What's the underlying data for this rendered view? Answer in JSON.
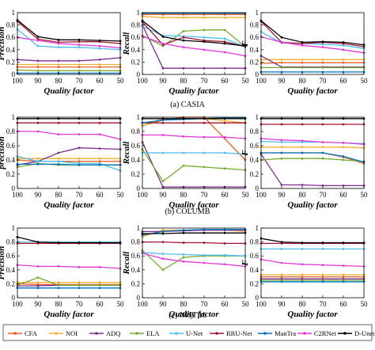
{
  "x_values": [
    100,
    90,
    80,
    70,
    60,
    50
  ],
  "x_ticks": [
    "100",
    "90",
    "80",
    "70",
    "60",
    "50"
  ],
  "y_ticks": [
    "0",
    "0.2",
    "0.4",
    "0.6",
    "0.8",
    "1"
  ],
  "xlabel": "Quality factor",
  "methods": [
    {
      "name": "CFA",
      "color": "#e8622a"
    },
    {
      "name": "NOI",
      "color": "#f2b134"
    },
    {
      "name": "ADQ",
      "color": "#7e2f8e"
    },
    {
      "name": "ELA",
      "color": "#77ac30"
    },
    {
      "name": "U-Net",
      "color": "#4dbeee"
    },
    {
      "name": "RRU-Net",
      "color": "#a2142f"
    },
    {
      "name": "ManTra",
      "color": "#0072bd"
    },
    {
      "name": "C2RNet",
      "color": "#e23ad8"
    },
    {
      "name": "D-Unet",
      "color": "#000000"
    }
  ],
  "chart_data": [
    {
      "type": "line",
      "dataset": "CASIA",
      "caption": "(a) CASIA",
      "panels": [
        {
          "ylabel": "Precision",
          "ylim": [
            0,
            1
          ],
          "series": [
            [
              0.12,
              0.12,
              0.12,
              0.12,
              0.12,
              0.12
            ],
            [
              0.16,
              0.16,
              0.16,
              0.16,
              0.16,
              0.16
            ],
            [
              0.24,
              0.22,
              0.22,
              0.22,
              0.24,
              0.27
            ],
            [
              0.07,
              0.06,
              0.06,
              0.06,
              0.06,
              0.06
            ],
            [
              0.73,
              0.46,
              0.44,
              0.44,
              0.42,
              0.4
            ],
            [
              0.86,
              0.57,
              0.52,
              0.53,
              0.53,
              0.5
            ],
            [
              0.02,
              0.02,
              0.02,
              0.02,
              0.02,
              0.02
            ],
            [
              0.6,
              0.55,
              0.5,
              0.48,
              0.46,
              0.43
            ],
            [
              0.88,
              0.61,
              0.56,
              0.56,
              0.55,
              0.54
            ]
          ]
        },
        {
          "ylabel": "Recall",
          "ylim": [
            0,
            1
          ],
          "series": [
            [
              0.97,
              0.97,
              0.97,
              0.97,
              0.97,
              0.97
            ],
            [
              0.94,
              0.92,
              0.92,
              0.92,
              0.92,
              0.92
            ],
            [
              0.8,
              0.1,
              0.1,
              0.1,
              0.1,
              0.1
            ],
            [
              0.63,
              0.46,
              0.7,
              0.72,
              0.72,
              0.45
            ],
            [
              0.78,
              0.63,
              0.62,
              0.6,
              0.58,
              0.45
            ],
            [
              0.85,
              0.48,
              0.6,
              0.55,
              0.53,
              0.45
            ],
            [
              0.99,
              0.99,
              0.99,
              0.99,
              0.99,
              0.99
            ],
            [
              0.62,
              0.5,
              0.44,
              0.4,
              0.36,
              0.3
            ],
            [
              0.87,
              0.61,
              0.55,
              0.53,
              0.5,
              0.46
            ]
          ]
        },
        {
          "ylabel": "F",
          "ylim": [
            0,
            1
          ],
          "series": [
            [
              0.18,
              0.19,
              0.19,
              0.19,
              0.19,
              0.19
            ],
            [
              0.24,
              0.24,
              0.24,
              0.24,
              0.24,
              0.24
            ],
            [
              0.3,
              0.12,
              0.12,
              0.12,
              0.12,
              0.12
            ],
            [
              0.11,
              0.11,
              0.11,
              0.11,
              0.11,
              0.11
            ],
            [
              0.69,
              0.51,
              0.5,
              0.49,
              0.47,
              0.42
            ],
            [
              0.86,
              0.52,
              0.5,
              0.52,
              0.5,
              0.45
            ],
            [
              0.04,
              0.04,
              0.04,
              0.04,
              0.04,
              0.04
            ],
            [
              0.61,
              0.52,
              0.47,
              0.44,
              0.4,
              0.35
            ],
            [
              0.87,
              0.6,
              0.52,
              0.53,
              0.52,
              0.48
            ]
          ]
        }
      ]
    },
    {
      "type": "line",
      "dataset": "COLUMB",
      "caption": "(b) COLUMB",
      "panels": [
        {
          "ylabel": "precision",
          "ylim": [
            0,
            1
          ],
          "series": [
            [
              0.4,
              0.38,
              0.38,
              0.38,
              0.38,
              0.38
            ],
            [
              0.42,
              0.42,
              0.42,
              0.42,
              0.42,
              0.42
            ],
            [
              0.33,
              0.38,
              0.5,
              0.57,
              0.56,
              0.55
            ],
            [
              0.3,
              0.35,
              0.33,
              0.33,
              0.33,
              0.33
            ],
            [
              0.45,
              0.38,
              0.38,
              0.35,
              0.35,
              0.25
            ],
            [
              0.92,
              0.92,
              0.92,
              0.92,
              0.92,
              0.92
            ],
            [
              0.34,
              0.34,
              0.34,
              0.33,
              0.33,
              0.33
            ],
            [
              0.8,
              0.8,
              0.76,
              0.76,
              0.76,
              0.69
            ],
            [
              0.98,
              0.98,
              0.98,
              0.98,
              0.98,
              0.98
            ]
          ]
        },
        {
          "ylabel": "Recall",
          "ylim": [
            0,
            1
          ],
          "series": [
            [
              0.88,
              0.96,
              1.0,
              1.0,
              0.7,
              0.4
            ],
            [
              0.88,
              0.98,
              0.98,
              0.98,
              0.95,
              0.92
            ],
            [
              0.65,
              0.02,
              0.02,
              0.02,
              0.02,
              0.02
            ],
            [
              0.55,
              0.1,
              0.32,
              0.3,
              0.28,
              0.26
            ],
            [
              0.5,
              0.5,
              0.5,
              0.5,
              0.5,
              0.48
            ],
            [
              0.92,
              0.92,
              0.92,
              0.92,
              0.92,
              0.92
            ],
            [
              0.92,
              0.96,
              0.97,
              0.98,
              0.99,
              0.99
            ],
            [
              0.75,
              0.75,
              0.73,
              0.72,
              0.72,
              0.7
            ],
            [
              0.98,
              0.98,
              0.98,
              0.98,
              0.98,
              0.98
            ]
          ]
        },
        {
          "ylabel": "F",
          "ylim": [
            0,
            1
          ],
          "series": [
            [
              0.5,
              0.5,
              0.5,
              0.5,
              0.44,
              0.35
            ],
            [
              0.58,
              0.58,
              0.58,
              0.58,
              0.58,
              0.57
            ],
            [
              0.48,
              0.05,
              0.05,
              0.04,
              0.04,
              0.04
            ],
            [
              0.4,
              0.42,
              0.42,
              0.42,
              0.4,
              0.38
            ],
            [
              0.66,
              0.65,
              0.65,
              0.65,
              0.64,
              0.63
            ],
            [
              0.9,
              0.9,
              0.9,
              0.9,
              0.9,
              0.9
            ],
            [
              0.5,
              0.5,
              0.5,
              0.5,
              0.45,
              0.37
            ],
            [
              0.7,
              0.68,
              0.67,
              0.65,
              0.64,
              0.62
            ],
            [
              0.98,
              0.98,
              0.98,
              0.98,
              0.98,
              0.98
            ]
          ]
        }
      ]
    },
    {
      "type": "line",
      "dataset": "NIST'16",
      "caption": "(c) NIST'16",
      "panels": [
        {
          "ylabel": "Precision",
          "ylim": [
            0,
            1
          ],
          "series": [
            [
              0.2,
              0.19,
              0.19,
              0.19,
              0.19,
              0.19
            ],
            [
              0.22,
              0.22,
              0.22,
              0.22,
              0.22,
              0.22
            ],
            [
              0.17,
              0.17,
              0.18,
              0.18,
              0.18,
              0.18
            ],
            [
              0.18,
              0.29,
              0.18,
              0.18,
              0.18,
              0.18
            ],
            [
              0.8,
              0.8,
              0.8,
              0.8,
              0.8,
              0.8
            ],
            [
              0.78,
              0.78,
              0.78,
              0.78,
              0.78,
              0.78
            ],
            [
              0.14,
              0.14,
              0.14,
              0.14,
              0.14,
              0.14
            ],
            [
              0.47,
              0.45,
              0.45,
              0.44,
              0.44,
              0.42
            ],
            [
              0.87,
              0.8,
              0.79,
              0.79,
              0.79,
              0.79
            ]
          ]
        },
        {
          "ylabel": "Recall",
          "ylim": [
            0,
            1
          ],
          "series": [
            [
              0.88,
              0.97,
              0.97,
              0.97,
              0.97,
              0.97
            ],
            [
              0.88,
              0.97,
              0.97,
              0.97,
              0.97,
              0.95
            ],
            [
              0.95,
              0.95,
              0.96,
              0.97,
              0.97,
              0.97
            ],
            [
              0.68,
              0.4,
              0.58,
              0.6,
              0.6,
              0.6
            ],
            [
              0.65,
              0.63,
              0.62,
              0.61,
              0.61,
              0.6
            ],
            [
              0.8,
              0.8,
              0.79,
              0.79,
              0.78,
              0.78
            ],
            [
              0.9,
              0.95,
              0.97,
              0.98,
              0.98,
              0.98
            ],
            [
              0.64,
              0.56,
              0.52,
              0.5,
              0.48,
              0.45
            ],
            [
              0.92,
              0.92,
              0.93,
              0.93,
              0.93,
              0.93
            ]
          ]
        },
        {
          "ylabel": "F",
          "ylim": [
            0,
            1
          ],
          "series": [
            [
              0.3,
              0.3,
              0.3,
              0.3,
              0.3,
              0.3
            ],
            [
              0.33,
              0.33,
              0.33,
              0.33,
              0.33,
              0.33
            ],
            [
              0.27,
              0.27,
              0.27,
              0.27,
              0.27,
              0.27
            ],
            [
              0.25,
              0.25,
              0.25,
              0.25,
              0.25,
              0.25
            ],
            [
              0.7,
              0.7,
              0.7,
              0.7,
              0.7,
              0.7
            ],
            [
              0.78,
              0.78,
              0.78,
              0.78,
              0.78,
              0.78
            ],
            [
              0.23,
              0.23,
              0.23,
              0.23,
              0.23,
              0.23
            ],
            [
              0.55,
              0.5,
              0.48,
              0.47,
              0.46,
              0.45
            ],
            [
              0.85,
              0.8,
              0.79,
              0.79,
              0.79,
              0.79
            ]
          ]
        }
      ]
    }
  ]
}
